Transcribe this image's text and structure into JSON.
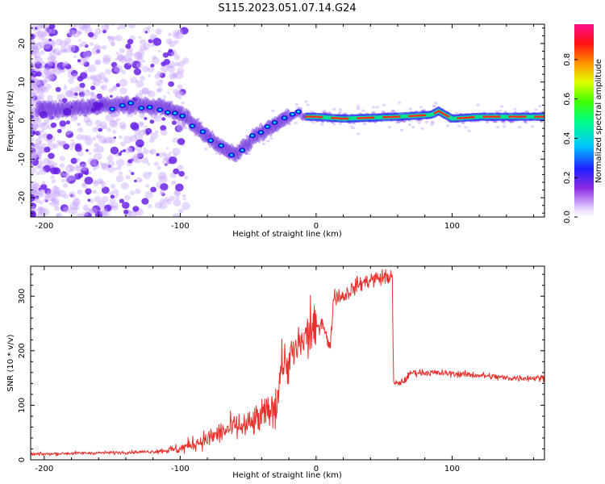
{
  "title": "S115.2023.051.07.14.G24",
  "chart_data": [
    {
      "type": "heatmap",
      "xlabel": "Height of straight line (km)",
      "ylabel": "Frequency (Hz)",
      "xlim": [
        -210,
        168
      ],
      "ylim": [
        -25,
        25
      ],
      "xticks": [
        -200,
        -100,
        0,
        100
      ],
      "yticks": [
        -20,
        -10,
        0,
        10,
        20
      ],
      "ridge": {
        "x": [
          -205,
          -180,
          -150,
          -130,
          -115,
          -100,
          -90,
          -80,
          -70,
          -60,
          -50,
          -45,
          -40,
          -30,
          -20,
          -12,
          -8,
          0,
          20,
          60,
          85,
          90,
          100,
          120,
          168
        ],
        "y": [
          3,
          3,
          4,
          4,
          3.5,
          2,
          -1,
          -4,
          -7,
          -9,
          -6,
          -4,
          -3,
          -1,
          1,
          2,
          1,
          1,
          0.5,
          1,
          1.5,
          2.5,
          0.5,
          1,
          1
        ]
      },
      "colorbar": {
        "label": "Normalized spectral amplitude",
        "ticks": [
          "0.0",
          "0.2",
          "0.4",
          "0.6",
          "0.8"
        ],
        "range": [
          0,
          0.98
        ]
      }
    },
    {
      "type": "line",
      "xlabel": "Height of straight line (km)",
      "ylabel": "SNR (10 * v/v)",
      "xlim": [
        -210,
        168
      ],
      "ylim": [
        0,
        355
      ],
      "xticks": [
        -200,
        -100,
        0,
        100
      ],
      "yticks": [
        0,
        100,
        200,
        300
      ],
      "color": "#e8302c",
      "series": [
        {
          "x": [
            -210,
            -180,
            -150,
            -120,
            -100,
            -90,
            -80,
            -70,
            -60,
            -50,
            -40,
            -30,
            -25,
            -20,
            -15,
            -10,
            -5,
            0,
            5,
            10,
            13,
            20,
            30,
            40,
            50,
            56,
            57,
            60,
            65,
            70,
            80,
            100,
            120,
            140,
            168
          ],
          "y": [
            10,
            12,
            13,
            15,
            20,
            30,
            38,
            50,
            60,
            62,
            78,
            100,
            180,
            180,
            200,
            215,
            230,
            240,
            255,
            200,
            300,
            300,
            320,
            330,
            335,
            335,
            140,
            140,
            145,
            160,
            160,
            158,
            155,
            150,
            150
          ]
        }
      ]
    }
  ]
}
